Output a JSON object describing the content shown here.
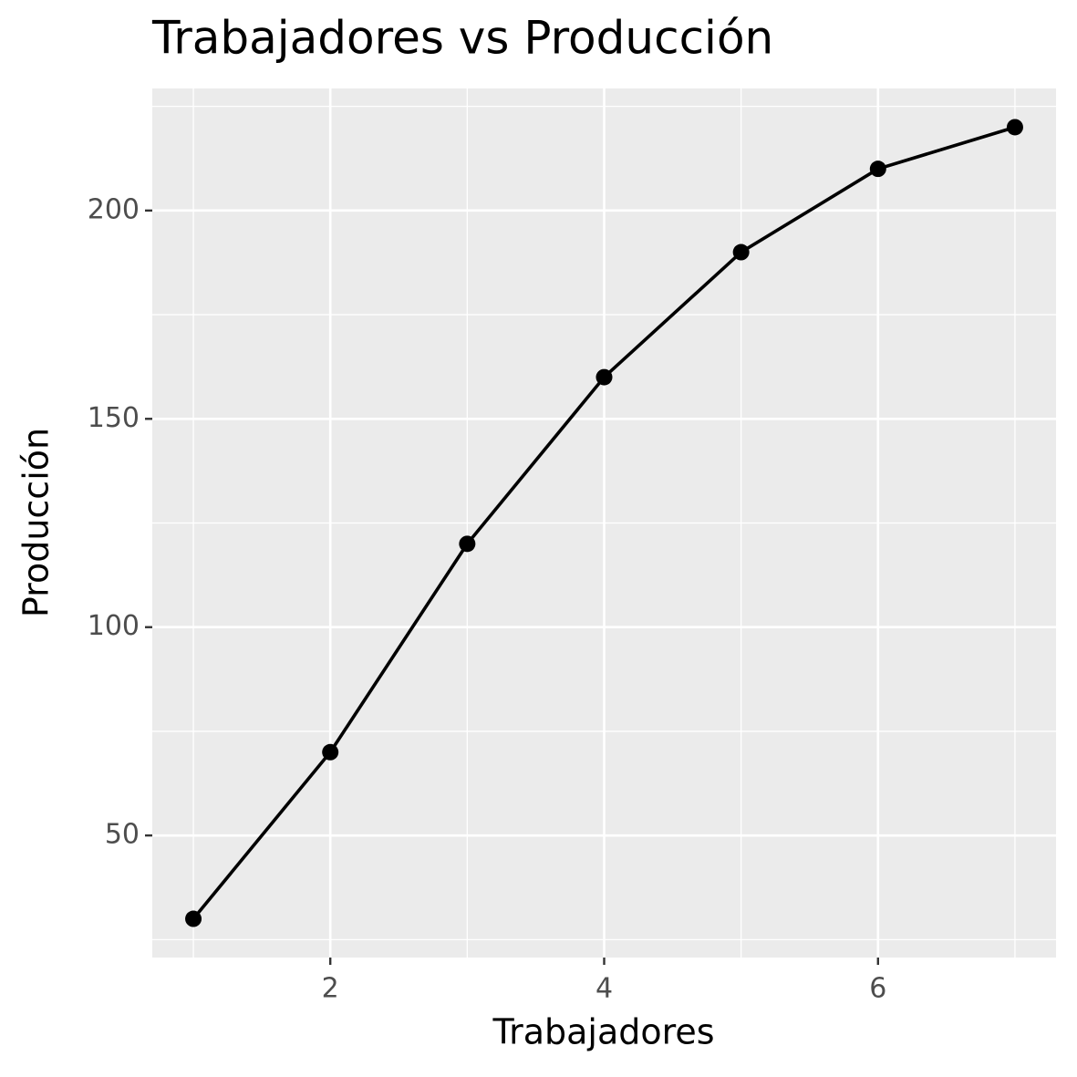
{
  "chart_data": {
    "type": "line",
    "title": "Trabajadores vs Producción",
    "x_label": "Trabajadores",
    "y_label": "Producción",
    "x": [
      1,
      2,
      3,
      4,
      5,
      6,
      7
    ],
    "series": [
      {
        "color": "#000000",
        "values": [
          30,
          70,
          120,
          160,
          190,
          210,
          220
        ]
      }
    ],
    "xlim": [
      0.7,
      7.3
    ],
    "ylim": [
      20.7,
      229.3
    ],
    "xticks": [
      2,
      4,
      6
    ],
    "yticks": [
      50,
      100,
      150,
      200
    ],
    "x_minor_gridlines": [
      1,
      3,
      5,
      7
    ],
    "y_minor_gridlines": [
      25,
      75,
      125,
      175,
      225
    ],
    "grid": true
  }
}
